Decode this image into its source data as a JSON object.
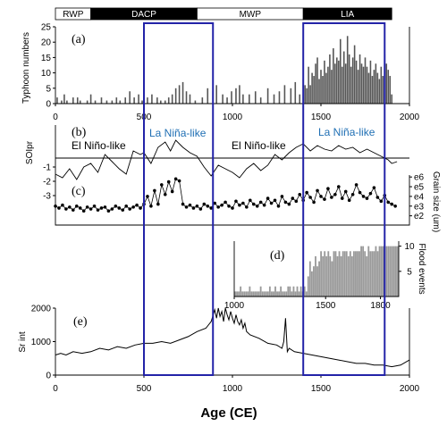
{
  "chart_data": {
    "type": "composite",
    "x_title": "Age (CE)",
    "periods": [
      {
        "label": "RWP",
        "start": 0,
        "end": 200,
        "fill": "#ffffff",
        "text": "#000000"
      },
      {
        "label": "DACP",
        "start": 200,
        "end": 800,
        "fill": "#000000",
        "text": "#ffffff"
      },
      {
        "label": "MWP",
        "start": 800,
        "end": 1400,
        "fill": "#ffffff",
        "text": "#000000"
      },
      {
        "label": "LIA",
        "start": 1400,
        "end": 1900,
        "fill": "#000000",
        "text": "#ffffff"
      }
    ],
    "highlight_boxes": [
      {
        "start": 500,
        "end": 890,
        "color": "#2323a8"
      },
      {
        "start": 1400,
        "end": 1860,
        "color": "#2323a8"
      }
    ],
    "panels": [
      {
        "id": "a",
        "label": "(a)",
        "type": "bar",
        "ylabel": "Typhoon numbers",
        "xlim": [
          0,
          2000
        ],
        "ylim": [
          0,
          25
        ],
        "yticks": [
          "0",
          "5",
          "10",
          "15",
          "20",
          "25"
        ],
        "xticks": [
          "0",
          "500",
          "1000",
          "1500",
          "2000"
        ],
        "bar_width": 8,
        "x": [
          10,
          35,
          50,
          65,
          100,
          125,
          140,
          180,
          200,
          225,
          260,
          290,
          320,
          345,
          365,
          395,
          420,
          445,
          470,
          490,
          520,
          545,
          575,
          595,
          620,
          640,
          660,
          680,
          700,
          720,
          740,
          760,
          790,
          830,
          860,
          890,
          910,
          945,
          970,
          995,
          1020,
          1040,
          1060,
          1095,
          1130,
          1160,
          1200,
          1235,
          1265,
          1295,
          1330,
          1355,
          1380,
          1400,
          1410,
          1420,
          1430,
          1440,
          1450,
          1460,
          1470,
          1480,
          1490,
          1500,
          1510,
          1520,
          1530,
          1540,
          1550,
          1560,
          1570,
          1580,
          1590,
          1600,
          1610,
          1620,
          1630,
          1640,
          1650,
          1660,
          1670,
          1680,
          1690,
          1700,
          1710,
          1720,
          1730,
          1740,
          1750,
          1760,
          1770,
          1780,
          1790,
          1800,
          1810,
          1820,
          1830,
          1840,
          1850,
          1860,
          1870,
          1880,
          1890,
          1900
        ],
        "values": [
          2,
          1,
          3,
          1,
          2,
          2,
          1,
          1,
          3,
          1,
          2,
          1,
          1,
          2,
          1,
          2,
          4,
          2,
          3,
          1,
          2,
          3,
          2,
          1,
          1,
          2,
          3,
          5,
          6,
          7,
          4,
          3,
          1,
          2,
          5,
          4,
          6,
          3,
          2,
          4,
          5,
          6,
          3,
          3,
          4,
          2,
          5,
          3,
          4,
          6,
          5,
          7,
          3,
          8,
          6,
          5,
          12,
          6,
          10,
          9,
          13,
          15,
          8,
          11,
          9,
          14,
          10,
          12,
          16,
          11,
          18,
          13,
          15,
          14,
          21,
          12,
          17,
          13,
          22,
          16,
          12,
          15,
          19,
          14,
          11,
          16,
          13,
          12,
          15,
          12,
          10,
          14,
          9,
          11,
          13,
          10,
          8,
          12,
          9,
          16,
          13,
          11,
          9,
          3
        ]
      },
      {
        "id": "b",
        "label": "(b)",
        "type": "line",
        "ylabel": "SOIpr",
        "xlim": [
          0,
          2000
        ],
        "ylim": [
          -1.5,
          1.5
        ],
        "annotations": [
          "El Niño-like",
          "La Niña-like",
          "El Niño-like",
          "La Niña-like"
        ],
        "x": [
          0,
          40,
          80,
          120,
          160,
          200,
          240,
          280,
          320,
          360,
          400,
          440,
          480,
          500,
          540,
          580,
          620,
          650,
          680,
          720,
          760,
          800,
          840,
          880,
          920,
          960,
          1000,
          1040,
          1080,
          1120,
          1160,
          1200,
          1240,
          1280,
          1320,
          1360,
          1400,
          1440,
          1480,
          1520,
          1560,
          1600,
          1640,
          1680,
          1720,
          1760,
          1800,
          1840,
          1880,
          1900,
          1930
        ],
        "values": [
          -0.9,
          -1.1,
          -0.6,
          -1.2,
          -0.5,
          -0.3,
          -0.8,
          0.2,
          -0.2,
          -0.6,
          -0.9,
          0.4,
          0.2,
          0.3,
          -0.3,
          0.6,
          0.9,
          0.4,
          1.0,
          0.6,
          0.3,
          0.1,
          -0.5,
          -1.0,
          -0.4,
          -0.6,
          -0.8,
          -1.1,
          -0.6,
          -0.3,
          -0.7,
          -0.4,
          0.2,
          -0.1,
          0.3,
          0.6,
          0.8,
          0.4,
          0.7,
          0.5,
          0.4,
          0.7,
          0.5,
          0.6,
          0.3,
          0.5,
          0.3,
          0.1,
          -0.1,
          -0.3,
          -0.2
        ]
      },
      {
        "id": "c",
        "label": "(c)",
        "type": "line-markers",
        "ylabel": "Grain size (um)",
        "xlim": [
          0,
          2000
        ],
        "ylim": [
          1.6,
          6.2
        ],
        "yscale": "ln",
        "yticks_left": [
          "-1",
          "-2",
          "-3"
        ],
        "yticks_right": [
          "e6",
          "e5",
          "e4",
          "e3",
          "e2"
        ],
        "x": [
          0,
          20,
          40,
          60,
          80,
          100,
          120,
          140,
          160,
          180,
          200,
          220,
          240,
          260,
          280,
          300,
          320,
          340,
          360,
          380,
          400,
          420,
          440,
          460,
          480,
          500,
          520,
          540,
          560,
          580,
          600,
          620,
          640,
          660,
          680,
          700,
          720,
          740,
          760,
          780,
          800,
          820,
          840,
          860,
          880,
          900,
          920,
          940,
          960,
          980,
          1000,
          1020,
          1040,
          1060,
          1080,
          1100,
          1120,
          1140,
          1160,
          1180,
          1200,
          1220,
          1240,
          1260,
          1280,
          1300,
          1320,
          1340,
          1360,
          1380,
          1400,
          1420,
          1440,
          1460,
          1480,
          1500,
          1520,
          1540,
          1560,
          1580,
          1600,
          1620,
          1640,
          1660,
          1680,
          1700,
          1720,
          1740,
          1760,
          1780,
          1800,
          1820,
          1840,
          1860,
          1880,
          1900,
          1920
        ],
        "values": [
          3.0,
          2.8,
          3.1,
          2.7,
          2.9,
          2.6,
          3.0,
          2.8,
          2.5,
          2.9,
          2.7,
          3.0,
          2.6,
          2.8,
          2.9,
          2.5,
          2.7,
          3.0,
          2.8,
          2.6,
          3.0,
          2.7,
          2.9,
          3.1,
          2.8,
          3.2,
          4.0,
          3.0,
          4.6,
          3.2,
          5.2,
          4.2,
          5.5,
          4.5,
          5.8,
          5.6,
          3.2,
          2.9,
          3.1,
          2.8,
          3.0,
          2.7,
          3.2,
          3.0,
          2.8,
          3.3,
          2.9,
          3.1,
          3.4,
          3.0,
          2.8,
          3.5,
          3.1,
          3.3,
          2.9,
          3.6,
          3.2,
          3.0,
          3.4,
          3.1,
          3.8,
          3.3,
          3.6,
          3.0,
          4.0,
          3.4,
          3.2,
          3.8,
          3.5,
          4.2,
          3.6,
          4.4,
          3.9,
          3.4,
          4.6,
          4.0,
          3.7,
          4.8,
          3.9,
          4.2,
          5.0,
          3.8,
          4.5,
          3.6,
          4.2,
          5.2,
          4.4,
          4.0,
          3.8,
          4.3,
          4.9,
          3.9,
          3.5,
          4.1,
          3.4,
          3.2,
          3.0
        ]
      },
      {
        "id": "d",
        "label": "(d)",
        "type": "bar",
        "ylabel": "Flood events",
        "xlim": [
          1000,
          1900
        ],
        "ylim": [
          0,
          11
        ],
        "yticks": [
          "5",
          "10"
        ],
        "xticks": [
          "1000",
          "1500",
          "1800"
        ],
        "bar_width": 9,
        "x": [
          1005,
          1015,
          1025,
          1035,
          1045,
          1055,
          1065,
          1075,
          1085,
          1095,
          1105,
          1115,
          1125,
          1135,
          1145,
          1155,
          1165,
          1175,
          1185,
          1195,
          1205,
          1215,
          1225,
          1235,
          1245,
          1255,
          1265,
          1275,
          1285,
          1295,
          1305,
          1315,
          1325,
          1335,
          1345,
          1355,
          1365,
          1375,
          1385,
          1395,
          1405,
          1415,
          1425,
          1435,
          1445,
          1455,
          1465,
          1475,
          1485,
          1495,
          1505,
          1515,
          1525,
          1535,
          1545,
          1555,
          1565,
          1575,
          1585,
          1595,
          1605,
          1615,
          1625,
          1635,
          1645,
          1655,
          1665,
          1675,
          1685,
          1695,
          1705,
          1715,
          1725,
          1735,
          1745,
          1755,
          1765,
          1775,
          1785,
          1795,
          1805,
          1815,
          1825,
          1835,
          1845,
          1855,
          1865,
          1875,
          1885,
          1895
        ],
        "values": [
          1,
          1,
          1,
          2,
          1,
          1,
          1,
          1,
          2,
          1,
          1,
          1,
          1,
          1,
          2,
          1,
          1,
          1,
          1,
          2,
          1,
          1,
          2,
          1,
          1,
          2,
          1,
          1,
          1,
          2,
          2,
          1,
          2,
          1,
          2,
          1,
          2,
          1,
          2,
          1,
          4,
          7,
          5,
          6,
          8,
          6,
          7,
          9,
          8,
          9,
          8,
          9,
          8,
          7,
          9,
          9,
          8,
          9,
          8,
          9,
          9,
          9,
          8,
          9,
          8,
          9,
          9,
          9,
          9,
          10,
          10,
          9,
          8,
          10,
          9,
          9,
          9,
          10,
          9,
          10,
          10,
          10,
          10,
          10,
          10,
          10,
          10,
          10,
          10,
          10
        ]
      },
      {
        "id": "e",
        "label": "(e)",
        "type": "line",
        "ylabel": "Sr int",
        "xlim": [
          0,
          2000
        ],
        "ylim": [
          0,
          2000
        ],
        "yticks": [
          "0",
          "1000",
          "2000"
        ],
        "xticks": [
          "0",
          "500",
          "1000",
          "1500",
          "2000"
        ],
        "x": [
          0,
          30,
          60,
          100,
          150,
          200,
          250,
          300,
          350,
          400,
          450,
          500,
          550,
          600,
          650,
          700,
          750,
          800,
          850,
          880,
          900,
          910,
          920,
          930,
          940,
          950,
          960,
          970,
          980,
          990,
          1000,
          1010,
          1020,
          1030,
          1040,
          1050,
          1060,
          1070,
          1080,
          1100,
          1150,
          1200,
          1250,
          1280,
          1290,
          1300,
          1310,
          1320,
          1350,
          1400,
          1450,
          1500,
          1550,
          1600,
          1650,
          1700,
          1750,
          1800,
          1850,
          1900,
          1950,
          2000
        ],
        "values": [
          600,
          650,
          600,
          700,
          650,
          700,
          800,
          750,
          850,
          800,
          900,
          950,
          950,
          1000,
          950,
          1050,
          1150,
          1300,
          1400,
          1600,
          1950,
          1700,
          2000,
          1750,
          1900,
          1600,
          2000,
          1800,
          1650,
          1900,
          1700,
          1550,
          1800,
          1600,
          1500,
          1650,
          1400,
          1550,
          1300,
          1200,
          1100,
          950,
          900,
          800,
          1000,
          1700,
          700,
          800,
          700,
          650,
          600,
          550,
          500,
          450,
          400,
          350,
          350,
          300,
          300,
          250,
          300,
          450
        ]
      }
    ]
  }
}
